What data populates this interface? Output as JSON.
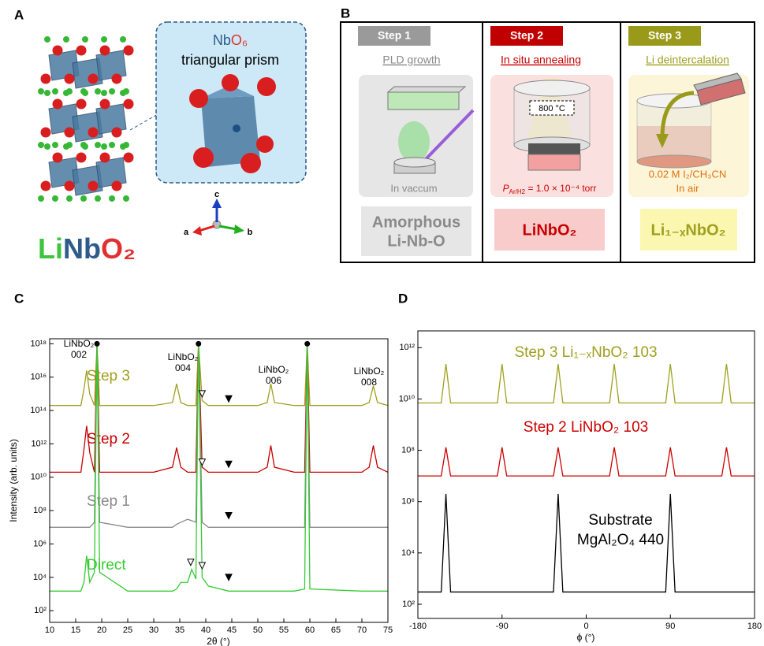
{
  "panel_a": {
    "label": "A",
    "inset_title": [
      "Nb",
      "O",
      "₆"
    ],
    "inset_subtitle": "triangular prism",
    "axes": [
      "c",
      "a",
      "b"
    ],
    "compound": [
      "Li",
      "Nb",
      "O",
      "₂"
    ]
  },
  "panel_b": {
    "label": "B",
    "steps": [
      {
        "tag": "Step 1",
        "process": "PLD growth",
        "note": "In vaccum",
        "product": [
          "Amorphous",
          "Li-Nb-O"
        ]
      },
      {
        "tag": "Step 2",
        "process": "In situ annealing",
        "temperature": "800 °C",
        "pressure_symbol": "P",
        "pressure_subscript": "Ar/H2",
        "pressure_value": " = 1.0 × 10⁻⁴ torr",
        "product": [
          "LiNbO₂"
        ]
      },
      {
        "tag": "Step 3",
        "process": "Li deintercalation",
        "notes": [
          "0.02 M I₂/CH₃CN",
          "In air"
        ],
        "product": [
          "Li₁₋ₓNbO₂"
        ]
      }
    ]
  },
  "chart_data": [
    {
      "type": "line",
      "panel_label": "C",
      "x_label": "2θ (°)",
      "y_label": "Intensity (arb. units)",
      "log_y": true,
      "xlim": [
        10,
        75
      ],
      "xticks": [
        10,
        15,
        20,
        25,
        30,
        35,
        40,
        45,
        50,
        55,
        60,
        65,
        70,
        75
      ],
      "ylim": [
        20,
        2e+18
      ],
      "yticks": [
        {
          "value": 100.0,
          "label": "10²"
        },
        {
          "value": 10000.0,
          "label": "10⁴"
        },
        {
          "value": 1000000.0,
          "label": "10⁶"
        },
        {
          "value": 100000000.0,
          "label": "10⁸"
        },
        {
          "value": 10000000000.0,
          "label": "10¹⁰"
        },
        {
          "value": 1000000000000.0,
          "label": "10¹²"
        },
        {
          "value": 100000000000000.0,
          "label": "10¹⁴"
        },
        {
          "value": 1e+16,
          "label": "10¹⁶"
        },
        {
          "value": 1e+18,
          "label": "10¹⁸"
        }
      ],
      "x": [
        10,
        16,
        16.6,
        17.1,
        17.7,
        18.6,
        19.1,
        19.6,
        25,
        30,
        33.6,
        34.4,
        35.2,
        36.5,
        37.3,
        38.1,
        38.6,
        39.3,
        40.5,
        44.4,
        50,
        51.8,
        52.5,
        53.2,
        57,
        59.0,
        59.5,
        60,
        70,
        71.4,
        72.2,
        73,
        75
      ],
      "series": [
        {
          "name": "Step 3",
          "color": "#a0a020",
          "values": [
            200000000000000.0,
            200000000000000.0,
            2000000000000000.0,
            2.5e+16,
            1000000000000000.0,
            200000000000000.0,
            1e+18,
            200000000000000.0,
            200000000000000.0,
            200000000000000.0,
            300000000000000.0,
            4000000000000000.0,
            300000000000000.0,
            200000000000000.0,
            200000000000000.0,
            200000000000000.0,
            1e+18,
            400000000000000.0,
            200000000000000.0,
            200000000000000.0,
            200000000000000.0,
            300000000000000.0,
            4000000000000000.0,
            300000000000000.0,
            200000000000000.0,
            200000000000000.0,
            1e+18,
            200000000000000.0,
            200000000000000.0,
            300000000000000.0,
            3000000000000000.0,
            300000000000000.0,
            200000000000000.0
          ]
        },
        {
          "name": "Step 2",
          "color": "#c80000",
          "values": [
            20000000000.0,
            20000000000.0,
            500000000000.0,
            12000000000000.0,
            300000000000.0,
            20000000000.0,
            1e+18,
            20000000000.0,
            20000000000.0,
            20000000000.0,
            40000000000.0,
            600000000000.0,
            40000000000.0,
            20000000000.0,
            20000000000.0,
            20000000000.0,
            1e+18,
            40000000000.0,
            20000000000.0,
            20000000000.0,
            20000000000.0,
            40000000000.0,
            800000000000.0,
            40000000000.0,
            20000000000.0,
            20000000000.0,
            1e+18,
            20000000000.0,
            20000000000.0,
            40000000000.0,
            800000000000.0,
            40000000000.0,
            20000000000.0
          ]
        },
        {
          "name": "Step 1",
          "color": "#8a8a8a",
          "values": [
            10000000.0,
            10000000.0,
            10000000.0,
            10000000.0,
            10000000.0,
            20000000.0,
            1e+18,
            20000000.0,
            10000000.0,
            10000000.0,
            10000000.0,
            15000000.0,
            20000000.0,
            30000000.0,
            25000000.0,
            20000000.0,
            1e+18,
            20000000.0,
            10000000.0,
            10000000.0,
            10000000.0,
            10000000.0,
            10000000.0,
            10000000.0,
            10000000.0,
            10000000.0,
            1e+18,
            10000000.0,
            10000000.0,
            10000000.0,
            10000000.0,
            10000000.0,
            10000000.0
          ]
        },
        {
          "name": "Direct",
          "color": "#33cc33",
          "values": [
            1500.0,
            1500.0,
            5000.0,
            200000.0,
            5000.0,
            20000.0,
            1e+18,
            20000.0,
            1500.0,
            1500.0,
            1500.0,
            2000.0,
            5000.0,
            5000.0,
            30000.0,
            8000.0,
            1e+18,
            10000.0,
            3000.0,
            1500.0,
            1500.0,
            1500.0,
            1500.0,
            1500.0,
            1500.0,
            2000.0,
            1e+18,
            2000.0,
            1500.0,
            1500.0,
            1500.0,
            1500.0,
            1500.0
          ]
        }
      ],
      "annotations": [
        [
          "LiNbO₂",
          "002"
        ],
        [
          "LiNbO₂",
          "004"
        ],
        [
          "LiNbO₂",
          "006"
        ],
        [
          "LiNbO₂",
          "008"
        ]
      ],
      "markers": [
        {
          "x": 19.1,
          "y": 1e+18,
          "shape": "dot"
        },
        {
          "x": 38.6,
          "y": 1e+18,
          "shape": "dot"
        },
        {
          "x": 59.5,
          "y": 1e+18,
          "shape": "dot"
        },
        {
          "x": 39.3,
          "y": 1000000000000000.0,
          "shape": "open"
        },
        {
          "x": 39.3,
          "y": 80000000000.0,
          "shape": "open"
        },
        {
          "x": 37.1,
          "y": 80000.0,
          "shape": "open"
        },
        {
          "x": 39.3,
          "y": 50000.0,
          "shape": "open"
        },
        {
          "x": 44.4,
          "y": 500000000000000.0,
          "shape": "filled"
        },
        {
          "x": 44.4,
          "y": 60000000000.0,
          "shape": "filled"
        },
        {
          "x": 44.4,
          "y": 50000000.0,
          "shape": "filled"
        },
        {
          "x": 44.4,
          "y": 10000.0,
          "shape": "filled"
        }
      ]
    },
    {
      "type": "line",
      "panel_label": "D",
      "x_label": "ϕ (°)",
      "log_y": true,
      "xlim": [
        -180,
        180
      ],
      "xticks": [
        -180,
        -90,
        0,
        90,
        180
      ],
      "ylim": [
        28,
        4500000000000.0
      ],
      "yticks": [
        {
          "value": 100.0,
          "label": "10²"
        },
        {
          "value": 10000.0,
          "label": "10⁴"
        },
        {
          "value": 1000000.0,
          "label": "10⁶"
        },
        {
          "value": 100000000.0,
          "label": "10⁸"
        },
        {
          "value": 10000000000.0,
          "label": "10¹⁰"
        },
        {
          "value": 1000000000000.0,
          "label": "10¹²"
        }
      ],
      "x": [
        -180,
        -155,
        -150,
        -145,
        -95,
        -90,
        -85,
        -35,
        -30,
        -25,
        25,
        30,
        35,
        85,
        90,
        95,
        145,
        150,
        155,
        180
      ],
      "series": [
        {
          "name": [
            "Step 3 Li₁₋ₓNbO₂ 103"
          ],
          "color": "#a0a020",
          "values": [
            7000000000.0,
            7000000000.0,
            230000000000.0,
            7000000000.0,
            7000000000.0,
            230000000000.0,
            7000000000.0,
            7000000000.0,
            230000000000.0,
            7000000000.0,
            7000000000.0,
            230000000000.0,
            7000000000.0,
            7000000000.0,
            230000000000.0,
            7000000000.0,
            7000000000.0,
            230000000000.0,
            7000000000.0,
            7000000000.0
          ]
        },
        {
          "name": [
            "Step 2 LiNbO₂ 103"
          ],
          "color": "#cc0000",
          "values": [
            10000000.0,
            10000000.0,
            130000000.0,
            10000000.0,
            10000000.0,
            130000000.0,
            10000000.0,
            10000000.0,
            130000000.0,
            10000000.0,
            10000000.0,
            130000000.0,
            10000000.0,
            10000000.0,
            130000000.0,
            10000000.0,
            10000000.0,
            130000000.0,
            10000000.0,
            10000000.0
          ]
        },
        {
          "name": [
            "Substrate",
            "MgAl₂O₄ 440"
          ],
          "color": "#000000",
          "values": [
            300.0,
            300.0,
            2000000.0,
            300.0,
            300.0,
            300.0,
            300.0,
            300.0,
            2000000.0,
            300.0,
            300.0,
            300.0,
            300.0,
            300.0,
            2000000.0,
            300.0,
            300.0,
            300.0,
            300.0,
            300.0
          ]
        }
      ]
    }
  ]
}
